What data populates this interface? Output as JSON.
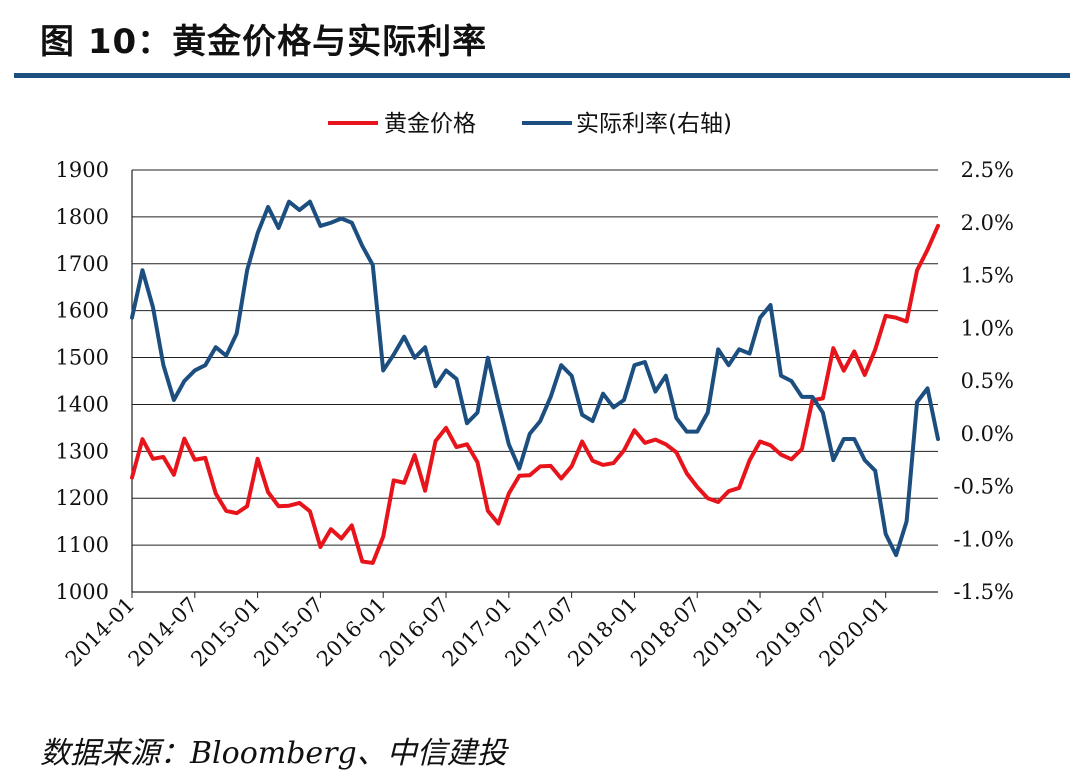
{
  "title": "图 10：黄金价格与实际利率",
  "source": "数据来源：Bloomberg、中信建投",
  "colors": {
    "gold": "#e8141b",
    "rate": "#1c4f7f",
    "rule": "#1c4f7f"
  },
  "chart_data": {
    "type": "line",
    "grid": true,
    "legend_position": "top-center",
    "x_tick_labels": [
      "2014-01",
      "2014-07",
      "2015-01",
      "2015-07",
      "2016-01",
      "2016-07",
      "2017-01",
      "2017-07",
      "2018-01",
      "2018-07",
      "2019-01",
      "2019-07",
      "2020-01"
    ],
    "y_left": {
      "ylim": [
        1000,
        1900
      ],
      "ticks": [
        "1900",
        "1800",
        "1700",
        "1600",
        "1500",
        "1400",
        "1300",
        "1200",
        "1100",
        "1000"
      ]
    },
    "y_right": {
      "ylim": [
        -1.5,
        2.5
      ],
      "ticks": [
        "2.5%",
        "2.0%",
        "1.5%",
        "1.0%",
        "0.5%",
        "0.0%",
        "-0.5%",
        "-1.0%",
        "-1.5%"
      ]
    },
    "series": [
      {
        "name": "黄金价格",
        "axis": "left",
        "start": "2014-01",
        "values": [
          1244,
          1326,
          1284,
          1288,
          1250,
          1327,
          1282,
          1286,
          1210,
          1173,
          1168,
          1183,
          1284,
          1213,
          1183,
          1184,
          1190,
          1172,
          1096,
          1134,
          1114,
          1142,
          1065,
          1062,
          1118,
          1238,
          1233,
          1292,
          1216,
          1322,
          1350,
          1309,
          1315,
          1277,
          1173,
          1146,
          1210,
          1248,
          1249,
          1268,
          1269,
          1242,
          1268,
          1321,
          1280,
          1271,
          1275,
          1302,
          1345,
          1318,
          1325,
          1315,
          1298,
          1253,
          1224,
          1200,
          1192,
          1215,
          1222,
          1281,
          1321,
          1313,
          1293,
          1283,
          1305,
          1409,
          1413,
          1520,
          1472,
          1513,
          1463,
          1517,
          1589,
          1585,
          1577,
          1686,
          1730,
          1781
        ]
      },
      {
        "name": "实际利率(右轴)",
        "axis": "right",
        "start": "2014-01",
        "values": [
          1.1,
          1.55,
          1.2,
          0.65,
          0.32,
          0.5,
          0.6,
          0.65,
          0.82,
          0.74,
          0.95,
          1.55,
          1.9,
          2.15,
          1.95,
          2.2,
          2.12,
          2.2,
          1.97,
          2.0,
          2.04,
          2.0,
          1.78,
          1.6,
          0.6,
          0.75,
          0.92,
          0.72,
          0.82,
          0.45,
          0.6,
          0.52,
          0.1,
          0.2,
          0.72,
          0.3,
          -0.1,
          -0.33,
          0.0,
          0.12,
          0.35,
          0.65,
          0.55,
          0.18,
          0.12,
          0.38,
          0.25,
          0.32,
          0.65,
          0.68,
          0.4,
          0.55,
          0.15,
          0.02,
          0.02,
          0.2,
          0.8,
          0.65,
          0.8,
          0.76,
          1.1,
          1.22,
          0.55,
          0.5,
          0.35,
          0.35,
          0.2,
          -0.25,
          -0.05,
          -0.05,
          -0.25,
          -0.35,
          -0.95,
          -1.15,
          -0.83,
          0.3,
          0.43,
          -0.05
        ]
      }
    ]
  }
}
